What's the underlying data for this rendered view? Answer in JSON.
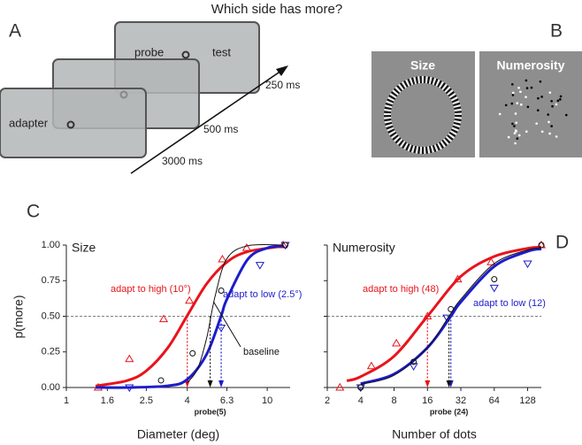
{
  "panel_a": {
    "label": "A",
    "question": "Which side has more?",
    "adapter": "adapter",
    "probe": "probe",
    "test": "test",
    "durations": [
      "3000 ms",
      "500 ms",
      "250 ms"
    ]
  },
  "panel_b": {
    "label": "B",
    "panels": [
      "Size",
      "Numerosity"
    ]
  },
  "chart_data": [
    {
      "type": "line",
      "panel_label": "C",
      "title": "Size",
      "xlabel": "Diameter (deg)",
      "ylabel": "p(more)",
      "xscale": "log",
      "xlim": [
        1,
        13
      ],
      "xticks": [
        1,
        1.6,
        2.5,
        4,
        6.3,
        10
      ],
      "ylim": [
        0,
        1
      ],
      "yticks": [
        {
          "value": 0,
          "label": "0.00"
        },
        {
          "value": 0.25,
          "label": "0.25"
        },
        {
          "value": 0.5,
          "label": "0.50"
        },
        {
          "value": 0.75,
          "label": "0.75"
        },
        {
          "value": 1,
          "label": "1.00"
        }
      ],
      "show_ytick_labels": true,
      "ref_line": 0.5,
      "probe_label": "probe(5)",
      "series": [
        {
          "name": "adapt to high (10°)",
          "color": "#e8141c",
          "marker": "triangle",
          "pse": 4,
          "x": [
            1.44,
            2.06,
            3.05,
            4.1,
            5.98,
            7.9,
            12
          ],
          "values": [
            0,
            0.2,
            0.48,
            0.61,
            0.9,
            0.98,
            1
          ],
          "fit_x": [
            1.4,
            2,
            2.5,
            3.2,
            4,
            5,
            6.3,
            8,
            12
          ],
          "fit_values": [
            0.011,
            0.048,
            0.117,
            0.279,
            0.505,
            0.729,
            0.88,
            0.954,
            0.992
          ]
        },
        {
          "name": "adapt to low (2.5°)",
          "color": "#1c1ccc",
          "marker": "triangle-down",
          "pse": 5.9,
          "x": [
            2.06,
            5.9,
            9.2,
            12.3
          ],
          "values": [
            0,
            0.42,
            0.86,
            1
          ],
          "fit_x": [
            1.4,
            2,
            3.2,
            4,
            5,
            5.9,
            6.3,
            8,
            10,
            12
          ],
          "fit_values": [
            0,
            0,
            0.012,
            0.057,
            0.235,
            0.504,
            0.62,
            0.9,
            0.979,
            0.994
          ]
        },
        {
          "name": "baseline",
          "color": "#111111",
          "marker": "circle",
          "pse": 5.2,
          "x": [
            2.96,
            4.25,
            5.9,
            12.3
          ],
          "values": [
            0.05,
            0.24,
            0.68,
            1
          ],
          "fit_x": [
            4,
            4.5,
            5,
            5.5,
            6.3,
            8,
            12
          ],
          "fit_values": [
            0.033,
            0.13,
            0.35,
            0.64,
            0.905,
            0.995,
            1
          ]
        }
      ]
    },
    {
      "type": "line",
      "panel_label": "D",
      "title": "Numerosity",
      "xlabel": "Number of dots",
      "xscale": "log",
      "xlim": [
        2,
        170
      ],
      "xticks": [
        2,
        4,
        8,
        16,
        32,
        64,
        128
      ],
      "ylim": [
        0,
        1
      ],
      "yticks": [
        0,
        0.25,
        0.5,
        0.75,
        1
      ],
      "show_ytick_labels": false,
      "ref_line": 0.5,
      "probe_label": "probe (24)",
      "series": [
        {
          "name": "adapt to high (48)",
          "color": "#e8141c",
          "marker": "triangle",
          "pse": 16,
          "x": [
            2.6,
            5,
            8.4,
            16,
            30,
            60,
            170
          ],
          "values": [
            0,
            0.15,
            0.31,
            0.5,
            0.76,
            0.88,
            1
          ],
          "fit_x": [
            3,
            4,
            8,
            16,
            32,
            64,
            128,
            170
          ],
          "fit_values": [
            0.047,
            0.076,
            0.22,
            0.5,
            0.78,
            0.92,
            0.977,
            0.986
          ]
        },
        {
          "name": "adapt to low (12)",
          "color": "#1c1ccc",
          "marker": "triangle-down",
          "pse": 26,
          "x": [
            4,
            12,
            24,
            64,
            128
          ],
          "values": [
            0,
            0.15,
            0.49,
            0.7,
            0.87
          ],
          "fit_x": [
            4,
            8,
            16,
            26,
            32,
            64,
            128,
            170
          ],
          "fit_values": [
            0.027,
            0.094,
            0.28,
            0.5,
            0.6,
            0.85,
            0.956,
            0.973
          ]
        },
        {
          "color": "#111111",
          "marker": "circle",
          "pse": 25,
          "x": [
            4,
            12,
            26,
            64,
            170
          ],
          "values": [
            0,
            0.18,
            0.55,
            0.76,
            1
          ],
          "fit_x": [
            4,
            8,
            16,
            25,
            32,
            64,
            128,
            170
          ],
          "fit_values": [
            0.022,
            0.086,
            0.28,
            0.5,
            0.62,
            0.87,
            0.966,
            0.98
          ]
        }
      ]
    }
  ]
}
